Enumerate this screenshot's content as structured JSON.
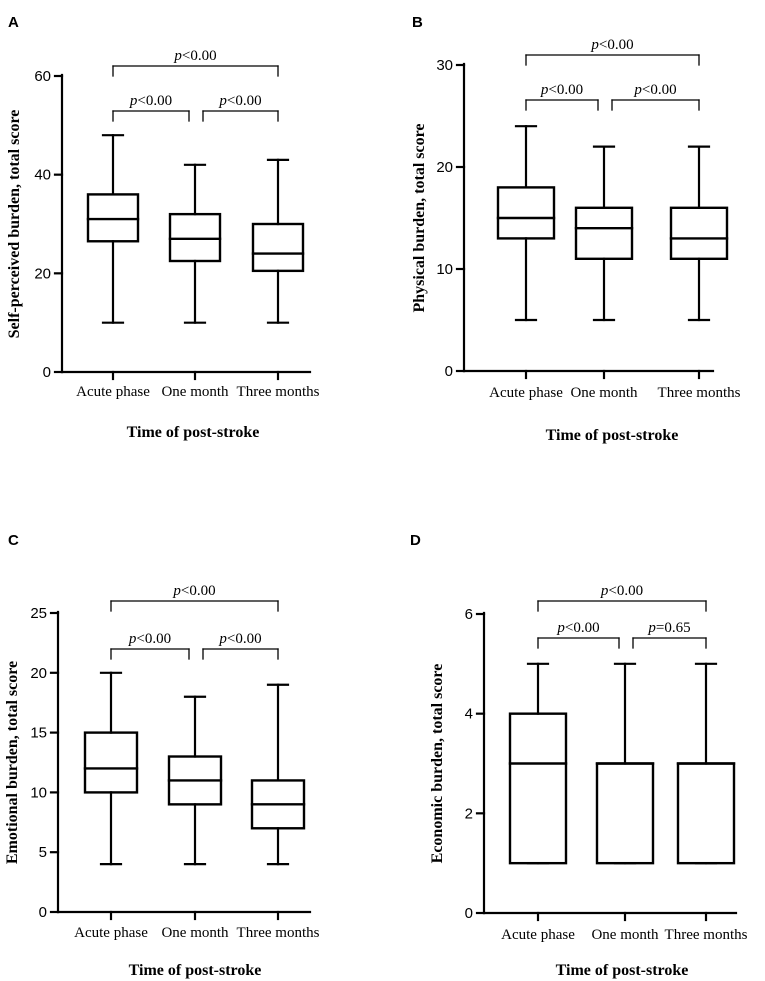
{
  "colors": {
    "stroke": "#000000",
    "background": "#ffffff"
  },
  "chart_data": [
    {
      "panel": "A",
      "type": "boxplot",
      "xlabel": "Time of post-stroke",
      "ylabel": "Self-perceived burden, total score",
      "ylim": [
        0,
        60
      ],
      "yticks": [
        0,
        20,
        40,
        60
      ],
      "categories": [
        "Acute phase",
        "One month",
        "Three months"
      ],
      "boxes": [
        {
          "min": 10,
          "q1": 26.5,
          "median": 31,
          "q3": 36,
          "max": 48
        },
        {
          "min": 10,
          "q1": 22.5,
          "median": 27,
          "q3": 32,
          "max": 42
        },
        {
          "min": 10,
          "q1": 20.5,
          "median": 24,
          "q3": 30,
          "max": 43
        }
      ],
      "comparisons": [
        {
          "from": 0,
          "to": 2,
          "label": "<0.00"
        },
        {
          "from": 0,
          "to": 1,
          "label": "<0.00"
        },
        {
          "from": 1,
          "to": 2,
          "label": "<0.00"
        }
      ]
    },
    {
      "panel": "B",
      "type": "boxplot",
      "xlabel": "Time of post-stroke",
      "ylabel": "Physical burden, total score",
      "ylim": [
        0,
        30
      ],
      "yticks": [
        0,
        10,
        20,
        30
      ],
      "categories": [
        "Acute phase",
        "One month",
        "Three months"
      ],
      "boxes": [
        {
          "min": 5,
          "q1": 13,
          "median": 15,
          "q3": 18,
          "max": 24
        },
        {
          "min": 5,
          "q1": 11,
          "median": 14,
          "q3": 16,
          "max": 22
        },
        {
          "min": 5,
          "q1": 11,
          "median": 13,
          "q3": 16,
          "max": 22
        }
      ],
      "comparisons": [
        {
          "from": 0,
          "to": 2,
          "label": "<0.00"
        },
        {
          "from": 0,
          "to": 1,
          "label": "<0.00"
        },
        {
          "from": 1,
          "to": 2,
          "label": "<0.00"
        }
      ]
    },
    {
      "panel": "C",
      "type": "boxplot",
      "xlabel": "Time of post-stroke",
      "ylabel": "Emotional burden, total score",
      "ylim": [
        0,
        25
      ],
      "yticks": [
        0,
        5,
        10,
        15,
        20,
        25
      ],
      "categories": [
        "Acute phase",
        "One month",
        "Three months"
      ],
      "boxes": [
        {
          "min": 4,
          "q1": 10,
          "median": 12,
          "q3": 15,
          "max": 20
        },
        {
          "min": 4,
          "q1": 9,
          "median": 11,
          "q3": 13,
          "max": 18
        },
        {
          "min": 4,
          "q1": 7,
          "median": 9,
          "q3": 11,
          "max": 19
        }
      ],
      "comparisons": [
        {
          "from": 0,
          "to": 2,
          "label": "<0.00"
        },
        {
          "from": 0,
          "to": 1,
          "label": "<0.00"
        },
        {
          "from": 1,
          "to": 2,
          "label": "<0.00"
        }
      ]
    },
    {
      "panel": "D",
      "type": "boxplot",
      "xlabel": "Time of post-stroke",
      "ylabel": "Economic burden, total score",
      "ylim": [
        0,
        6
      ],
      "yticks": [
        0,
        2,
        4,
        6
      ],
      "categories": [
        "Acute phase",
        "One month",
        "Three months"
      ],
      "boxes": [
        {
          "min": 1,
          "q1": 1,
          "median": 3,
          "q3": 4,
          "max": 5
        },
        {
          "min": 1,
          "q1": 1,
          "median": 3,
          "q3": 3,
          "max": 5
        },
        {
          "min": 1,
          "q1": 1,
          "median": 3,
          "q3": 3,
          "max": 5
        }
      ],
      "comparisons": [
        {
          "from": 0,
          "to": 2,
          "label": "<0.00"
        },
        {
          "from": 0,
          "to": 1,
          "label": "<0.00"
        },
        {
          "from": 1,
          "to": 2,
          "label": "=0.65"
        }
      ]
    }
  ]
}
